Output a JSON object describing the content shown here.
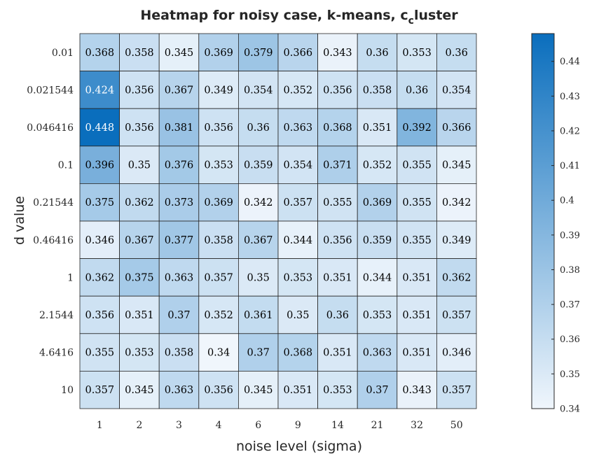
{
  "chart_data": {
    "type": "heatmap",
    "title": "Heatmap for noisy case, k-means, c",
    "title_subscript": "c",
    "title_suffix": "luster",
    "xlabel": "noise level (sigma)",
    "ylabel": "d value",
    "x_categories": [
      "1",
      "2",
      "3",
      "4",
      "6",
      "9",
      "14",
      "21",
      "32",
      "50"
    ],
    "y_categories": [
      "0.01",
      "0.021544",
      "0.046416",
      "0.1",
      "0.21544",
      "0.46416",
      "1",
      "2.1544",
      "4.6416",
      "10"
    ],
    "values": [
      [
        0.368,
        0.358,
        0.345,
        0.369,
        0.379,
        0.366,
        0.343,
        0.36,
        0.353,
        0.36
      ],
      [
        0.424,
        0.356,
        0.367,
        0.349,
        0.354,
        0.352,
        0.356,
        0.358,
        0.36,
        0.354
      ],
      [
        0.448,
        0.356,
        0.381,
        0.356,
        0.36,
        0.363,
        0.368,
        0.351,
        0.392,
        0.366
      ],
      [
        0.396,
        0.35,
        0.376,
        0.353,
        0.359,
        0.354,
        0.371,
        0.352,
        0.355,
        0.345
      ],
      [
        0.375,
        0.362,
        0.373,
        0.369,
        0.342,
        0.357,
        0.355,
        0.369,
        0.355,
        0.342
      ],
      [
        0.346,
        0.367,
        0.377,
        0.358,
        0.367,
        0.344,
        0.356,
        0.359,
        0.355,
        0.349
      ],
      [
        0.362,
        0.375,
        0.363,
        0.357,
        0.35,
        0.353,
        0.351,
        0.344,
        0.351,
        0.362
      ],
      [
        0.356,
        0.351,
        0.37,
        0.352,
        0.361,
        0.35,
        0.36,
        0.353,
        0.351,
        0.357
      ],
      [
        0.355,
        0.353,
        0.358,
        0.34,
        0.37,
        0.368,
        0.351,
        0.363,
        0.351,
        0.346
      ],
      [
        0.357,
        0.345,
        0.363,
        0.356,
        0.345,
        0.351,
        0.353,
        0.37,
        0.343,
        0.357
      ]
    ],
    "colorbar": {
      "range": [
        0.34,
        0.448
      ],
      "ticks": [
        "0.34",
        "0.35",
        "0.36",
        "0.37",
        "0.38",
        "0.39",
        "0.4",
        "0.41",
        "0.42",
        "0.43",
        "0.44"
      ]
    },
    "colors": {
      "low": "#f0f6fc",
      "high": "#0a6ebd",
      "text_dark": "#000000",
      "text_light": "#ffffff"
    }
  }
}
